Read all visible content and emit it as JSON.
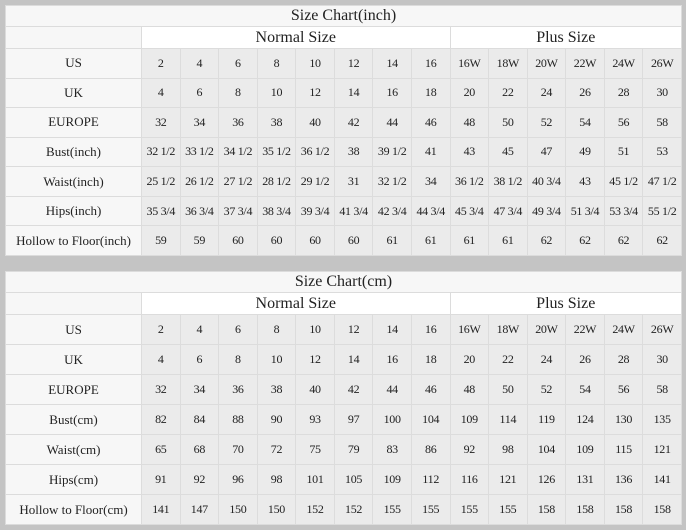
{
  "charts": [
    {
      "id": "inch",
      "title": "Size Chart(inch)",
      "groups": {
        "normal": "Normal Size",
        "plus": "Plus Size"
      },
      "rows": [
        {
          "label": "US",
          "values": [
            "2",
            "4",
            "6",
            "8",
            "10",
            "12",
            "14",
            "16",
            "16W",
            "18W",
            "20W",
            "22W",
            "24W",
            "26W"
          ]
        },
        {
          "label": "UK",
          "values": [
            "4",
            "6",
            "8",
            "10",
            "12",
            "14",
            "16",
            "18",
            "20",
            "22",
            "24",
            "26",
            "28",
            "30"
          ]
        },
        {
          "label": "EUROPE",
          "values": [
            "32",
            "34",
            "36",
            "38",
            "40",
            "42",
            "44",
            "46",
            "48",
            "50",
            "52",
            "54",
            "56",
            "58"
          ]
        },
        {
          "label": "Bust(inch)",
          "values": [
            "32 1/2",
            "33 1/2",
            "34 1/2",
            "35 1/2",
            "36 1/2",
            "38",
            "39 1/2",
            "41",
            "43",
            "45",
            "47",
            "49",
            "51",
            "53"
          ]
        },
        {
          "label": "Waist(inch)",
          "values": [
            "25 1/2",
            "26 1/2",
            "27 1/2",
            "28 1/2",
            "29 1/2",
            "31",
            "32 1/2",
            "34",
            "36 1/2",
            "38 1/2",
            "40 3/4",
            "43",
            "45 1/2",
            "47 1/2"
          ]
        },
        {
          "label": "Hips(inch)",
          "values": [
            "35 3/4",
            "36 3/4",
            "37 3/4",
            "38 3/4",
            "39 3/4",
            "41 3/4",
            "42 3/4",
            "44 3/4",
            "45 3/4",
            "47 3/4",
            "49 3/4",
            "51 3/4",
            "53 3/4",
            "55 1/2"
          ]
        },
        {
          "label": "Hollow to Floor(inch)",
          "values": [
            "59",
            "59",
            "60",
            "60",
            "60",
            "60",
            "61",
            "61",
            "61",
            "61",
            "62",
            "62",
            "62",
            "62"
          ]
        }
      ]
    },
    {
      "id": "cm",
      "title": "Size Chart(cm)",
      "groups": {
        "normal": "Normal Size",
        "plus": "Plus Size"
      },
      "rows": [
        {
          "label": "US",
          "values": [
            "2",
            "4",
            "6",
            "8",
            "10",
            "12",
            "14",
            "16",
            "16W",
            "18W",
            "20W",
            "22W",
            "24W",
            "26W"
          ]
        },
        {
          "label": "UK",
          "values": [
            "4",
            "6",
            "8",
            "10",
            "12",
            "14",
            "16",
            "18",
            "20",
            "22",
            "24",
            "26",
            "28",
            "30"
          ]
        },
        {
          "label": "EUROPE",
          "values": [
            "32",
            "34",
            "36",
            "38",
            "40",
            "42",
            "44",
            "46",
            "48",
            "50",
            "52",
            "54",
            "56",
            "58"
          ]
        },
        {
          "label": "Bust(cm)",
          "values": [
            "82",
            "84",
            "88",
            "90",
            "93",
            "97",
            "100",
            "104",
            "109",
            "114",
            "119",
            "124",
            "130",
            "135"
          ]
        },
        {
          "label": "Waist(cm)",
          "values": [
            "65",
            "68",
            "70",
            "72",
            "75",
            "79",
            "83",
            "86",
            "92",
            "98",
            "104",
            "109",
            "115",
            "121"
          ]
        },
        {
          "label": "Hips(cm)",
          "values": [
            "91",
            "92",
            "96",
            "98",
            "101",
            "105",
            "109",
            "112",
            "116",
            "121",
            "126",
            "131",
            "136",
            "141"
          ]
        },
        {
          "label": "Hollow to Floor(cm)",
          "values": [
            "141",
            "147",
            "150",
            "150",
            "152",
            "152",
            "155",
            "155",
            "155",
            "155",
            "158",
            "158",
            "158",
            "158"
          ]
        }
      ]
    }
  ]
}
